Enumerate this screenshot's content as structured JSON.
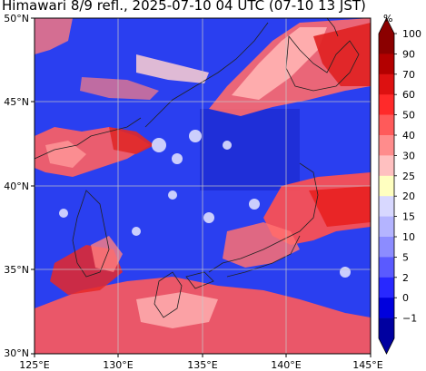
{
  "title": "Himawari 8/9 refl., 2025-07-10 04 UTC (07-10 13 JST)",
  "map": {
    "lon_ticks": [
      "125°E",
      "130°E",
      "135°E",
      "140°E",
      "145°E"
    ],
    "lat_ticks": [
      "50°N",
      "45°N",
      "40°N",
      "35°N",
      "30°N"
    ],
    "lon_range": [
      125,
      145
    ],
    "lat_range": [
      30,
      50
    ],
    "grid": true
  },
  "colorbar": {
    "unit": "%",
    "labels": [
      "100",
      "90",
      "70",
      "60",
      "50",
      "40",
      "30",
      "25",
      "20",
      "15",
      "10",
      "5",
      "2",
      "0",
      "−1"
    ],
    "colors": [
      "#8b0000",
      "#b30000",
      "#dd1111",
      "#ff2a2a",
      "#ff5a5a",
      "#ff8c8c",
      "#ffc0c0",
      "#ffffc0",
      "#d8d8ff",
      "#b4b4ff",
      "#8c8cff",
      "#5a5aff",
      "#2828ff",
      "#0000dd",
      "#0000a0"
    ],
    "extend": "both"
  }
}
